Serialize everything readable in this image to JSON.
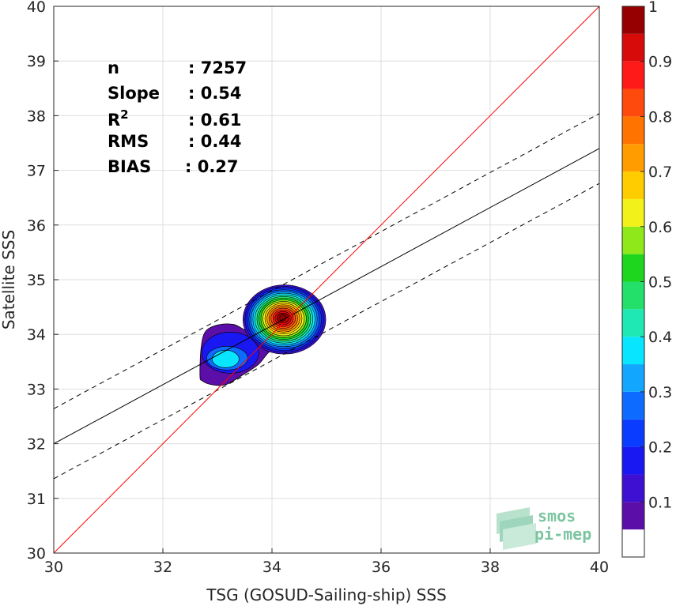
{
  "chart_data": {
    "type": "scatter",
    "subtype": "density-contour",
    "xlabel": "TSG (GOSUD-Sailing-ship) SSS",
    "ylabel": "Satellite SSS",
    "xlim": [
      30,
      40
    ],
    "ylim": [
      30,
      40
    ],
    "xticks": [
      "30",
      "32",
      "34",
      "36",
      "38",
      "40"
    ],
    "yticks": [
      "30",
      "31",
      "32",
      "33",
      "34",
      "35",
      "36",
      "37",
      "38",
      "39",
      "40"
    ],
    "grid": true,
    "stats": [
      {
        "label": "n",
        "value": ": 7257"
      },
      {
        "label": "Slope",
        "value": ": 0.54"
      },
      {
        "label": "R",
        "sup": "2",
        "value": ": 0.61"
      },
      {
        "label": "RMS",
        "value": ": 0.44"
      },
      {
        "label": "BIAS",
        "value": ": 0.27"
      }
    ],
    "lines": {
      "identity": {
        "color": "#ff0000",
        "points": [
          [
            30,
            30
          ],
          [
            40,
            40
          ]
        ]
      },
      "fit": {
        "color": "#000000",
        "points": [
          [
            30,
            32.0
          ],
          [
            40,
            37.4
          ]
        ]
      },
      "upper_bound": {
        "color": "#000000",
        "style": "dashed",
        "points": [
          [
            30,
            32.64
          ],
          [
            40,
            38.04
          ]
        ]
      },
      "lower_bound": {
        "color": "#000000",
        "style": "dashed",
        "points": [
          [
            30,
            31.36
          ],
          [
            40,
            36.76
          ]
        ]
      }
    },
    "density_peaks": [
      {
        "x": 34.2,
        "y": 34.3,
        "value": 1.0
      },
      {
        "x": 33.15,
        "y": 33.55,
        "value": 0.35
      }
    ],
    "colorbar": {
      "range": [
        0,
        1
      ],
      "ticks": [
        "0.1",
        "0.2",
        "0.3",
        "0.4",
        "0.5",
        "0.6",
        "0.7",
        "0.8",
        "0.9",
        "1"
      ],
      "levels": [
        {
          "from": 0.05,
          "to": 0.1,
          "color": "#5b0fa8"
        },
        {
          "from": 0.1,
          "to": 0.15,
          "color": "#3d10d2"
        },
        {
          "from": 0.15,
          "to": 0.2,
          "color": "#1a18f2"
        },
        {
          "from": 0.2,
          "to": 0.25,
          "color": "#0a3cff"
        },
        {
          "from": 0.25,
          "to": 0.3,
          "color": "#0d6cff"
        },
        {
          "from": 0.3,
          "to": 0.35,
          "color": "#12a6ff"
        },
        {
          "from": 0.35,
          "to": 0.4,
          "color": "#08e6ff"
        },
        {
          "from": 0.4,
          "to": 0.45,
          "color": "#1fe8b4"
        },
        {
          "from": 0.45,
          "to": 0.5,
          "color": "#22e06a"
        },
        {
          "from": 0.5,
          "to": 0.55,
          "color": "#1ed61e"
        },
        {
          "from": 0.55,
          "to": 0.6,
          "color": "#8ee81a"
        },
        {
          "from": 0.6,
          "to": 0.65,
          "color": "#f2f21a"
        },
        {
          "from": 0.65,
          "to": 0.7,
          "color": "#ffcc00"
        },
        {
          "from": 0.7,
          "to": 0.75,
          "color": "#ff9d00"
        },
        {
          "from": 0.75,
          "to": 0.8,
          "color": "#ff7300"
        },
        {
          "from": 0.8,
          "to": 0.85,
          "color": "#ff4a0d"
        },
        {
          "from": 0.85,
          "to": 0.9,
          "color": "#ff1a1a"
        },
        {
          "from": 0.9,
          "to": 0.95,
          "color": "#d80b0b"
        },
        {
          "from": 0.95,
          "to": 1.0,
          "color": "#960000"
        }
      ]
    }
  },
  "logo": {
    "line1": "smos",
    "line2": "pi-mep"
  }
}
